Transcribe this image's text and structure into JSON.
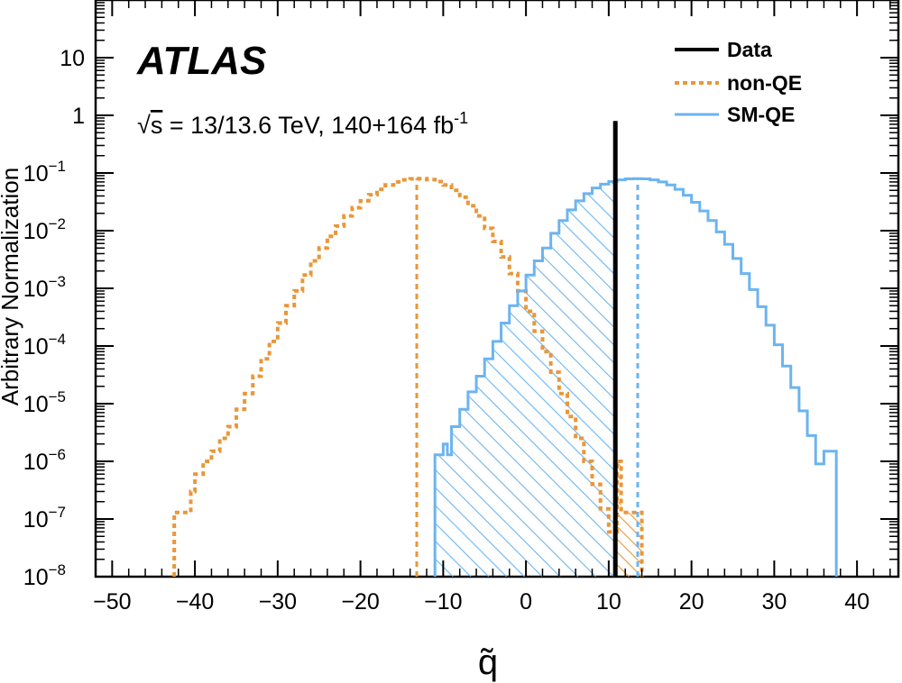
{
  "chart_data": {
    "type": "histogram",
    "xlabel": "q̃",
    "ylabel": "Arbitrary Normalization",
    "xlim": [
      -52,
      45
    ],
    "ylim": [
      1e-08,
      100
    ],
    "log_y": true,
    "x_ticks": [
      -50,
      -40,
      -30,
      -20,
      -10,
      0,
      10,
      20,
      30,
      40
    ],
    "x_tick_labels": [
      "−50",
      "−40",
      "−30",
      "−20",
      "−10",
      "0",
      "10",
      "20",
      "30",
      "40"
    ],
    "y_ticks": [
      {
        "value": 1e-08,
        "base": "10",
        "exp": "−8"
      },
      {
        "value": 1e-07,
        "base": "10",
        "exp": "−7"
      },
      {
        "value": 1e-06,
        "base": "10",
        "exp": "−6"
      },
      {
        "value": 1e-05,
        "base": "10",
        "exp": "−5"
      },
      {
        "value": 0.0001,
        "base": "10",
        "exp": "−4"
      },
      {
        "value": 0.001,
        "base": "10",
        "exp": "−3"
      },
      {
        "value": 0.01,
        "base": "10",
        "exp": "−2"
      },
      {
        "value": 0.1,
        "base": "10",
        "exp": "−1"
      },
      {
        "value": 1,
        "base": "1",
        "exp": ""
      },
      {
        "value": 10,
        "base": "10",
        "exp": ""
      }
    ],
    "experiment_label": "ATLAS",
    "energy_label": {
      "sqrt": "√",
      "s": "s",
      "rest": " = 13/13.6 TeV, 140+164 fb",
      "sup": "-1"
    },
    "legend": [
      {
        "label": "Data",
        "style": "solid",
        "color": "#000000"
      },
      {
        "label": "non-QE",
        "style": "dotted",
        "color": "#e8973a"
      },
      {
        "label": "SM-QE",
        "style": "solid",
        "color": "#6cb4f0"
      }
    ],
    "data_line_x": 10.8,
    "series": [
      {
        "name": "non-QE",
        "color": "#e8973a",
        "style": "dotted",
        "median": -13.2,
        "hatch_from": 10.8,
        "points": [
          [
            -42.5,
            1.3e-07
          ],
          [
            -40.5,
            3e-07
          ],
          [
            -40,
            6e-07
          ],
          [
            -39,
            1e-06
          ],
          [
            -38,
            1.5e-06
          ],
          [
            -37,
            2.5e-06
          ],
          [
            -36,
            4e-06
          ],
          [
            -35,
            8e-06
          ],
          [
            -34,
            1.5e-05
          ],
          [
            -33,
            3e-05
          ],
          [
            -32,
            6e-05
          ],
          [
            -31,
            0.00012
          ],
          [
            -30,
            0.00025
          ],
          [
            -29,
            0.0005
          ],
          [
            -28,
            0.0009
          ],
          [
            -27,
            0.0017
          ],
          [
            -26,
            0.003
          ],
          [
            -25,
            0.005
          ],
          [
            -24,
            0.008
          ],
          [
            -23,
            0.012
          ],
          [
            -22,
            0.018
          ],
          [
            -21,
            0.025
          ],
          [
            -20,
            0.033
          ],
          [
            -19,
            0.042
          ],
          [
            -18,
            0.052
          ],
          [
            -17,
            0.062
          ],
          [
            -16,
            0.07
          ],
          [
            -15,
            0.076
          ],
          [
            -14,
            0.079
          ],
          [
            -13,
            0.08
          ],
          [
            -12,
            0.077
          ],
          [
            -11,
            0.071
          ],
          [
            -10,
            0.062
          ],
          [
            -9,
            0.05
          ],
          [
            -8,
            0.038
          ],
          [
            -7,
            0.027
          ],
          [
            -6,
            0.018
          ],
          [
            -5,
            0.011
          ],
          [
            -4,
            0.0065
          ],
          [
            -3,
            0.0035
          ],
          [
            -2,
            0.0018
          ],
          [
            -1,
            0.0009
          ],
          [
            0,
            0.0004
          ],
          [
            1,
            0.00018
          ],
          [
            2,
            8e-05
          ],
          [
            3,
            3.5e-05
          ],
          [
            4,
            1.5e-05
          ],
          [
            5,
            6e-06
          ],
          [
            6,
            2.5e-06
          ],
          [
            7,
            1e-06
          ],
          [
            8,
            4e-07
          ],
          [
            9,
            1.5e-07
          ],
          [
            10,
            6e-08
          ],
          [
            11,
            1e-06
          ],
          [
            11.5,
            1.3e-07
          ],
          [
            13.5,
            1.3e-07
          ]
        ]
      },
      {
        "name": "SM-QE",
        "color": "#6cb4f0",
        "style": "solid",
        "median": 13.5,
        "hatch_to": 10.8,
        "points": [
          [
            -11,
            1.3e-06
          ],
          [
            -10,
            2e-06
          ],
          [
            -9.5,
            1.3e-06
          ],
          [
            -9,
            4e-06
          ],
          [
            -8,
            8e-06
          ],
          [
            -7,
            1.6e-05
          ],
          [
            -6,
            3e-05
          ],
          [
            -5,
            6e-05
          ],
          [
            -4,
            0.00012
          ],
          [
            -3,
            0.00025
          ],
          [
            -2,
            0.0005
          ],
          [
            -1,
            0.0009
          ],
          [
            0,
            0.0017
          ],
          [
            1,
            0.003
          ],
          [
            2,
            0.005
          ],
          [
            3,
            0.009
          ],
          [
            4,
            0.015
          ],
          [
            5,
            0.023
          ],
          [
            6,
            0.033
          ],
          [
            7,
            0.044
          ],
          [
            8,
            0.055
          ],
          [
            9,
            0.064
          ],
          [
            10,
            0.071
          ],
          [
            11,
            0.076
          ],
          [
            12,
            0.079
          ],
          [
            13,
            0.08
          ],
          [
            14,
            0.079
          ],
          [
            15,
            0.076
          ],
          [
            16,
            0.07
          ],
          [
            17,
            0.062
          ],
          [
            18,
            0.052
          ],
          [
            19,
            0.041
          ],
          [
            20,
            0.031
          ],
          [
            21,
            0.022
          ],
          [
            22,
            0.015
          ],
          [
            23,
            0.0095
          ],
          [
            24,
            0.0058
          ],
          [
            25,
            0.0033
          ],
          [
            26,
            0.0018
          ],
          [
            27,
            0.00095
          ],
          [
            28,
            0.00048
          ],
          [
            29,
            0.00023
          ],
          [
            30,
            0.000105
          ],
          [
            31,
            4.5e-05
          ],
          [
            32,
            1.9e-05
          ],
          [
            33,
            7.5e-06
          ],
          [
            34,
            2.8e-06
          ],
          [
            35,
            9e-07
          ],
          [
            36,
            1.5e-06
          ],
          [
            37,
            1.5e-06
          ]
        ]
      }
    ]
  }
}
